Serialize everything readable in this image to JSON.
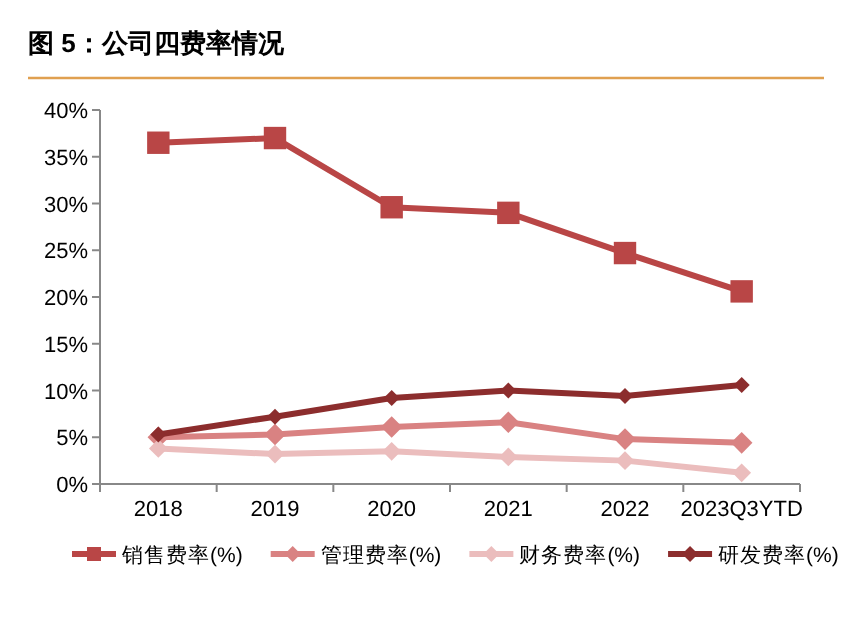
{
  "chart_data": {
    "type": "line",
    "title": "图 5：公司四费率情况",
    "categories": [
      "2018",
      "2019",
      "2020",
      "2021",
      "2022",
      "2023Q3YTD"
    ],
    "series": [
      {
        "name": "销售费率(%)",
        "color": "#b94646",
        "marker": "square",
        "values": [
          36.5,
          37.0,
          29.6,
          29.0,
          24.7,
          20.6
        ]
      },
      {
        "name": "管理费率(%)",
        "color": "#d98282",
        "marker": "diamond",
        "values": [
          5.0,
          5.3,
          6.1,
          6.6,
          4.8,
          4.4
        ]
      },
      {
        "name": "财务费率(%)",
        "color": "#ebbdbd",
        "marker": "diamond",
        "values": [
          3.8,
          3.2,
          3.5,
          2.9,
          2.5,
          1.2
        ]
      },
      {
        "name": "研发费率(%)",
        "color": "#8c2d2d",
        "marker": "diamond",
        "values": [
          5.3,
          7.2,
          9.2,
          10.0,
          9.4,
          10.6
        ]
      }
    ],
    "ylim": [
      0,
      40
    ],
    "yticks": [
      {
        "value": 0,
        "label": "0%"
      },
      {
        "value": 5,
        "label": "5%"
      },
      {
        "value": 10,
        "label": "10%"
      },
      {
        "value": 15,
        "label": "15%"
      },
      {
        "value": 20,
        "label": "20%"
      },
      {
        "value": 25,
        "label": "25%"
      },
      {
        "value": 30,
        "label": "30%"
      },
      {
        "value": 35,
        "label": "35%"
      },
      {
        "value": 40,
        "label": "40%"
      }
    ],
    "grid": false,
    "legend": "bottom",
    "line_style": "solid"
  }
}
